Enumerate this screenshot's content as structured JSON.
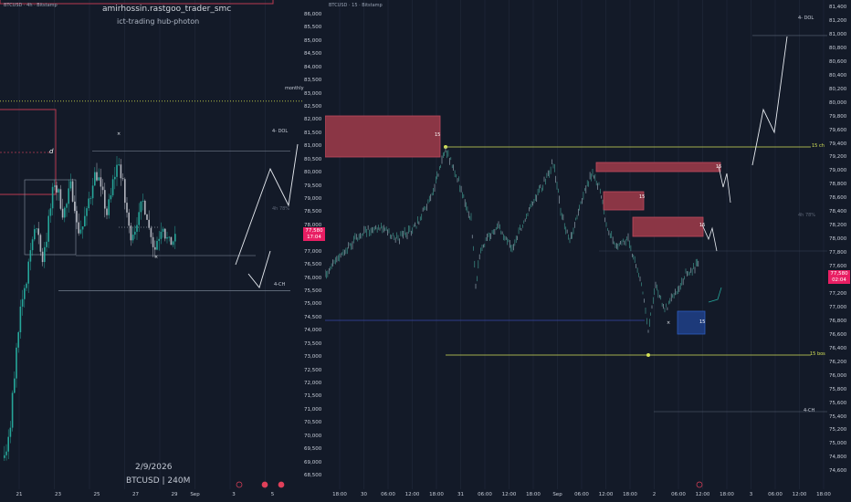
{
  "colors": {
    "background": "#131a28",
    "up_candle": "#26a69a",
    "down_candle": "#b2b5be",
    "supply_zone": "#8b3645",
    "demand_zone": "#1d3a7a",
    "level_yellow": "#d4e157",
    "current_price": "#e91e63"
  },
  "left_chart": {
    "id_label": "BTCUSD · 4h · Bitstamp",
    "author": "amirhossin.rastgoo_trader_smc",
    "subtitle": "ict-trading hub-photon",
    "date": "2/9/2026",
    "symbol": "BTCUSD | 240M",
    "monthly_label": "monthly",
    "dol_label": "4- DOL",
    "ch_label": "4-CH",
    "level_label": "4h 78%",
    "zone_label": "d",
    "price_tag": [
      "77,580",
      "17:04"
    ],
    "time_labels": [
      "21",
      "23",
      "25",
      "27",
      "29",
      "Sep",
      "3",
      "5"
    ]
  },
  "right_chart": {
    "id_label": "BTCUSD · 15 · Bitstamp",
    "dol_label": "4- DOL",
    "ch_label": "4-CH",
    "choch_label": "15 ch",
    "bos_label": "15 bos",
    "mid_level_label": "4h 78%",
    "zone_label": "15",
    "price_tag": [
      "77,580",
      "02:04"
    ],
    "time_labels": [
      "18:00",
      "30",
      "06:00",
      "12:00",
      "18:00",
      "31",
      "06:00",
      "12:00",
      "18:00",
      "Sep",
      "06:00",
      "12:00",
      "18:00",
      "2",
      "06:00",
      "12:00",
      "18:00",
      "3",
      "06:00",
      "12:00",
      "18:00"
    ]
  },
  "chart_data": [
    {
      "type": "candlestick",
      "title": "BTCUSD 4h",
      "x_ticks": [
        "21",
        "23",
        "25",
        "27",
        "29",
        "Sep",
        "3",
        "5"
      ],
      "ylim": [
        68500,
        86000
      ],
      "y_ticks": [
        86000,
        85500,
        85000,
        84500,
        84000,
        83500,
        83000,
        82500,
        82000,
        81500,
        81000,
        80500,
        80000,
        79500,
        79000,
        78500,
        78000,
        77500,
        77000,
        76500,
        76000,
        75500,
        75000,
        74500,
        74000,
        73500,
        73000,
        72500,
        72000,
        71500,
        71000,
        70500,
        70000,
        69500,
        69000,
        68500
      ],
      "current_price": 77580,
      "annotations": [
        {
          "label": "monthly",
          "price": 82750
        },
        {
          "label": "4- DOL",
          "price": 80850
        },
        {
          "label": "4-CH",
          "price": 75550
        }
      ]
    },
    {
      "type": "candlestick",
      "title": "BTCUSD 15",
      "x_ticks": [
        "18:00",
        "30",
        "06:00",
        "12:00",
        "18:00",
        "31",
        "06:00",
        "12:00",
        "18:00",
        "Sep",
        "06:00",
        "12:00",
        "18:00",
        "2",
        "06:00",
        "12:00",
        "18:00",
        "3",
        "06:00",
        "12:00",
        "18:00"
      ],
      "ylim": [
        74500,
        81500
      ],
      "y_ticks": [
        81400,
        81200,
        81000,
        80800,
        80600,
        80400,
        80200,
        80000,
        79800,
        79600,
        79400,
        79200,
        79000,
        78800,
        78600,
        78400,
        78200,
        78000,
        77800,
        77600,
        77400,
        77200,
        77000,
        76800,
        76600,
        76400,
        76200,
        76000,
        75800,
        75600,
        75400,
        75200,
        75000,
        74800,
        74600
      ],
      "current_price": 77580,
      "annotations": [
        {
          "label": "4- DOL",
          "price": 81000
        },
        {
          "label": "15 ch",
          "price": 79400
        },
        {
          "label": "15 bos",
          "price": 76400
        },
        {
          "label": "4-CH",
          "price": 75580
        }
      ]
    }
  ]
}
